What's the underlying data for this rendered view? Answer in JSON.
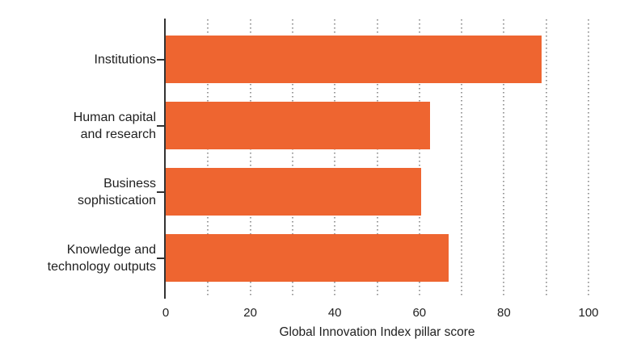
{
  "chart_data": {
    "type": "bar",
    "orientation": "horizontal",
    "title": "",
    "categories": [
      "Institutions",
      "Human capital\nand research",
      "Business\nsophistication",
      "Knowledge and\ntechnology outputs"
    ],
    "values": [
      89,
      62.5,
      60.5,
      67
    ],
    "xlabel": "Global Innovation Index pillar score",
    "ylabel": "",
    "xticks": [
      0,
      20,
      40,
      60,
      80,
      100
    ],
    "gridlines": [
      10,
      20,
      30,
      40,
      50,
      60,
      70,
      80,
      90,
      100
    ],
    "xlim": [
      0,
      104
    ],
    "grid": "dotted-vertical",
    "legend": "none",
    "colors": {
      "bar": "#EE6530",
      "gridline": "#9c9c9c",
      "axis": "#333333",
      "text": "#1f1f1f",
      "background": "#ffffff"
    }
  }
}
